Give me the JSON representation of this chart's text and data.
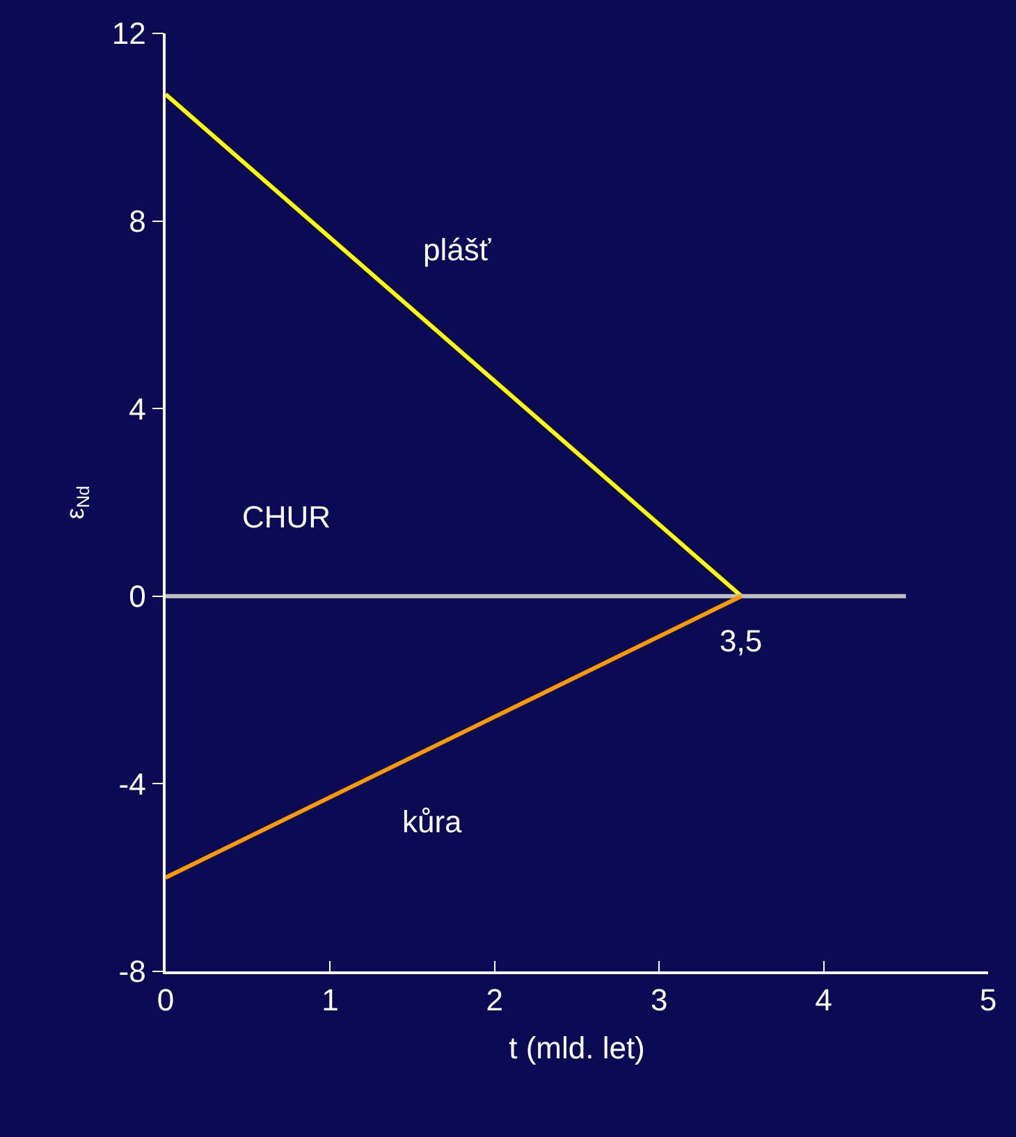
{
  "chart_data": {
    "type": "line",
    "xlabel": "t (mld. let)",
    "ylabel": "ε$_{Nd}$",
    "xlim": [
      0,
      5
    ],
    "xticks": [
      0,
      1,
      2,
      3,
      4,
      5
    ],
    "ylim": [
      -8,
      12
    ],
    "yticks": [
      -8,
      -4,
      0,
      4,
      8,
      12
    ],
    "grid": false,
    "legend": false,
    "marker": "none",
    "line_style": "solid",
    "series": [
      {
        "name": "plášť",
        "color": "#ffff00",
        "x": [
          0,
          3.5
        ],
        "values": [
          10.7,
          0
        ]
      },
      {
        "name": "CHUR",
        "color": "#c0c0c0",
        "x": [
          0,
          4.5
        ],
        "values": [
          0,
          0
        ]
      },
      {
        "name": "kůra",
        "color": "#ff9900",
        "x": [
          0,
          3.5
        ],
        "values": [
          -6,
          0
        ]
      }
    ],
    "annotations": [
      {
        "text": "3,5",
        "x": 3.5,
        "y": 0
      }
    ]
  }
}
